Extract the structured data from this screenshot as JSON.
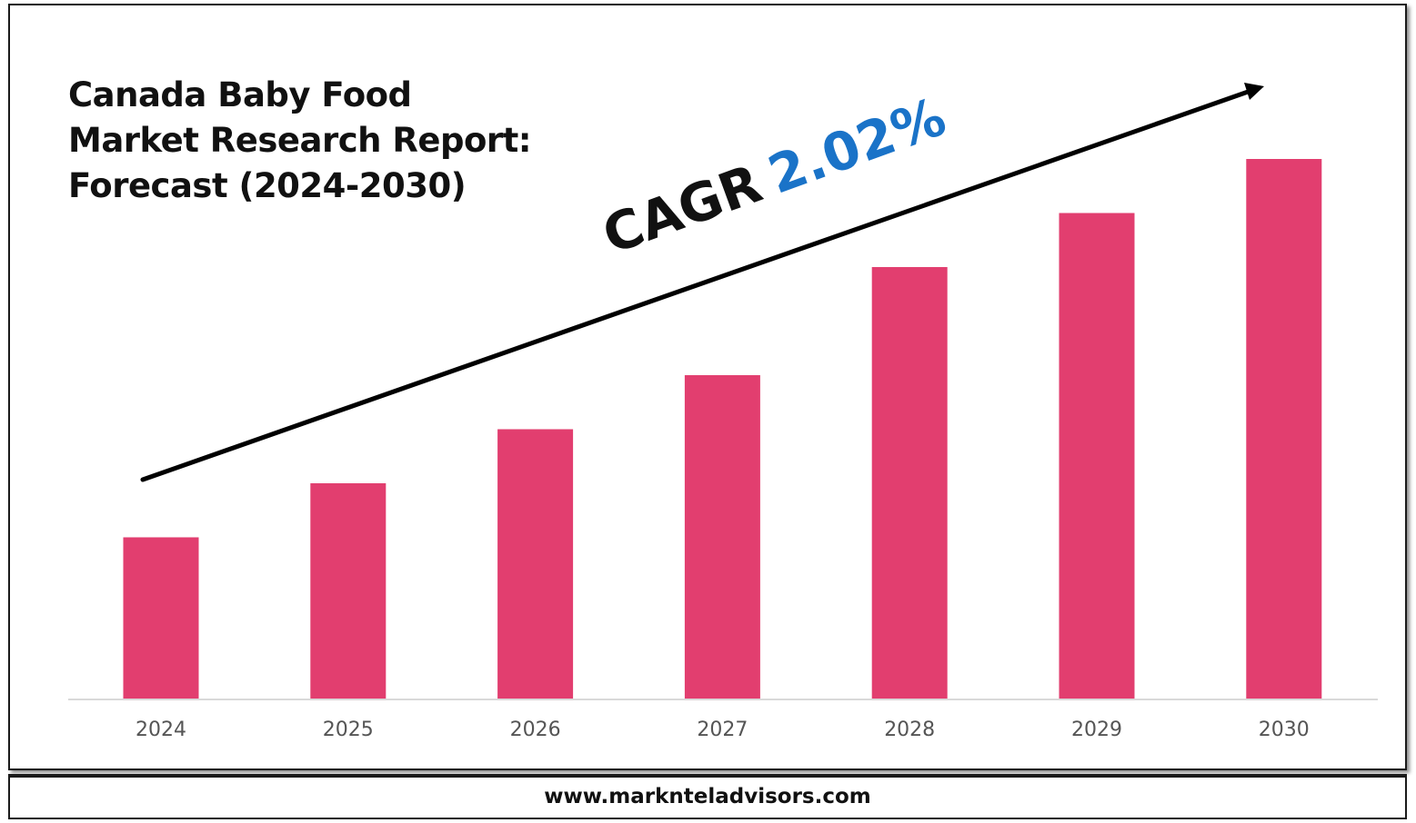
{
  "title_lines": [
    "Canada Baby Food",
    "Market Research Report:",
    "Forecast (2024-2030)"
  ],
  "cagr": {
    "label": "CAGR",
    "value": "2.02%",
    "label_color": "#111111",
    "value_color": "#1a73c8"
  },
  "footer": {
    "url": "www.marknteladvisors.com"
  },
  "chart_data": {
    "type": "bar",
    "categories": [
      "2024",
      "2025",
      "2026",
      "2027",
      "2028",
      "2029",
      "2030"
    ],
    "values": [
      30,
      40,
      50,
      60,
      80,
      90,
      100
    ],
    "title": "Canada Baby Food Market Research Report: Forecast (2024-2030)",
    "xlabel": "",
    "ylabel": "",
    "ylim": [
      0,
      100
    ],
    "grid": false,
    "legend": "none",
    "bar_color": "#e23e6f",
    "trend_arrow": true
  }
}
